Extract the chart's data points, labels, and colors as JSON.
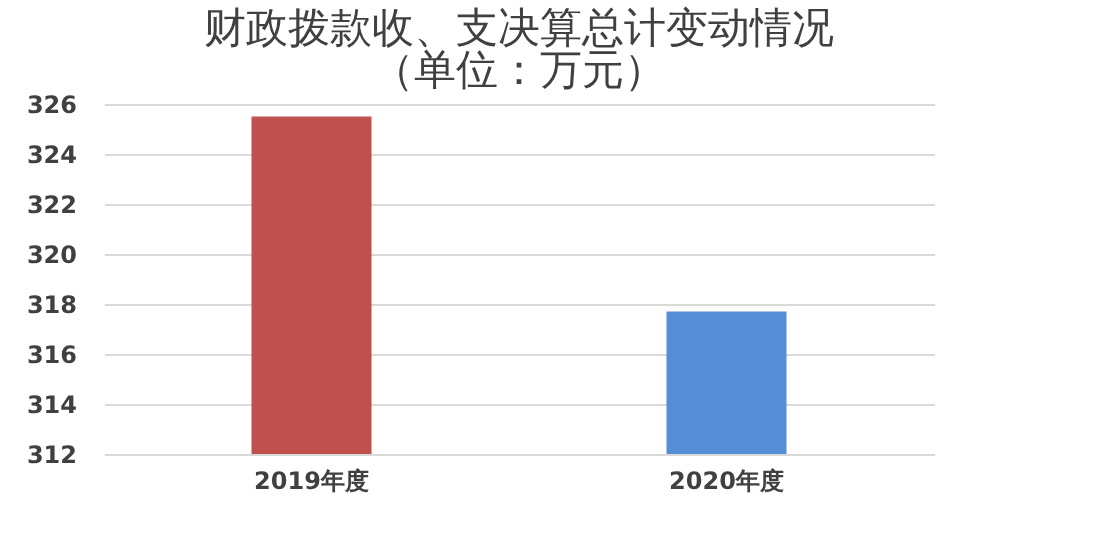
{
  "chart_data": {
    "type": "bar",
    "title": "财政拨款收、支决算总计变动情况",
    "subtitle": "（单位：万元）",
    "categories": [
      "2019年度",
      "2020年度"
    ],
    "values": [
      325.5,
      317.7
    ],
    "colors": [
      "#c0504d",
      "#558ed5"
    ],
    "ylim": [
      312,
      326
    ],
    "yticks": [
      312,
      314,
      316,
      318,
      320,
      322,
      324,
      326
    ],
    "grid": "y"
  }
}
